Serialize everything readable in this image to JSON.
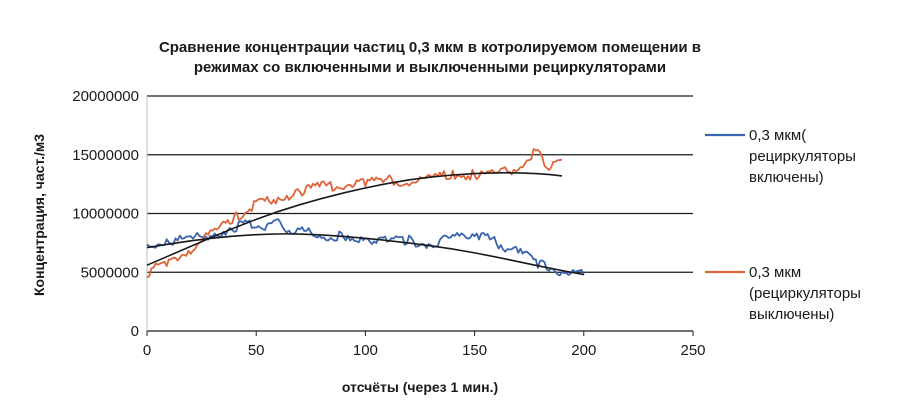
{
  "chart_data": {
    "type": "line",
    "title_lines": [
      "Сравнение концентрации частиц  0,3 мкм в котролируемом помещении в",
      "режимах со включенными и выключенными рециркуляторами"
    ],
    "xlabel": "отсчёты (через 1 мин.)",
    "ylabel": "Концентрация, част./м3",
    "xlim": [
      0,
      250
    ],
    "ylim": [
      0,
      20000000
    ],
    "xticks": [
      "0",
      "50",
      "100",
      "150",
      "200",
      "250"
    ],
    "yticks": [
      "0",
      "5000000",
      "10000000",
      "15000000",
      "20000000"
    ],
    "grid": "horizontal",
    "legend_position": "right",
    "series": [
      {
        "legend_lines": [
          "0,3 мкм(",
          "рециркуляторы",
          "включены)"
        ],
        "color": "#3a64b0",
        "x": [
          0,
          10,
          20,
          30,
          40,
          45,
          50,
          55,
          60,
          65,
          70,
          80,
          90,
          95,
          100,
          110,
          120,
          130,
          140,
          145,
          150,
          155,
          160,
          170,
          180,
          190,
          195,
          200
        ],
        "y": [
          7300000,
          7600000,
          7800000,
          8300000,
          8600000,
          9300000,
          9000000,
          8800000,
          9200000,
          8700000,
          8500000,
          8100000,
          8000000,
          7300000,
          7900000,
          7600000,
          7700000,
          7400000,
          7900000,
          8100000,
          8400000,
          7900000,
          7500000,
          6700000,
          5700000,
          5100000,
          4900000,
          4800000
        ]
      },
      {
        "legend_lines": [
          "0,3 мкм",
          "(рециркуляторы",
          "выключены)"
        ],
        "color": "#e0643a",
        "x": [
          0,
          10,
          20,
          30,
          40,
          45,
          50,
          60,
          70,
          80,
          90,
          100,
          110,
          120,
          130,
          140,
          150,
          160,
          170,
          175,
          178,
          182,
          185,
          190
        ],
        "y": [
          5000000,
          5800000,
          7000000,
          8300000,
          9500000,
          10300000,
          10700000,
          11300000,
          11900000,
          12300000,
          12400000,
          12700000,
          12900000,
          12600000,
          13100000,
          13200000,
          13300000,
          13400000,
          13800000,
          14700000,
          15300000,
          14400000,
          13800000,
          14600000
        ]
      }
    ],
    "trendlines": [
      {
        "type": "polynomial",
        "color": "#1a1a1a",
        "x": [
          0,
          20,
          40,
          60,
          80,
          100,
          120,
          140,
          160,
          180,
          200
        ],
        "y": [
          7100000,
          7700000,
          8100000,
          8300000,
          8200000,
          7900000,
          7500000,
          7000000,
          6300000,
          5500000,
          4800000
        ]
      },
      {
        "type": "polynomial",
        "color": "#1a1a1a",
        "x": [
          0,
          20,
          40,
          60,
          80,
          100,
          120,
          140,
          160,
          180,
          190
        ],
        "y": [
          5600000,
          7200000,
          8800000,
          10200000,
          11300000,
          12200000,
          12900000,
          13300000,
          13500000,
          13400000,
          13200000
        ]
      }
    ]
  }
}
